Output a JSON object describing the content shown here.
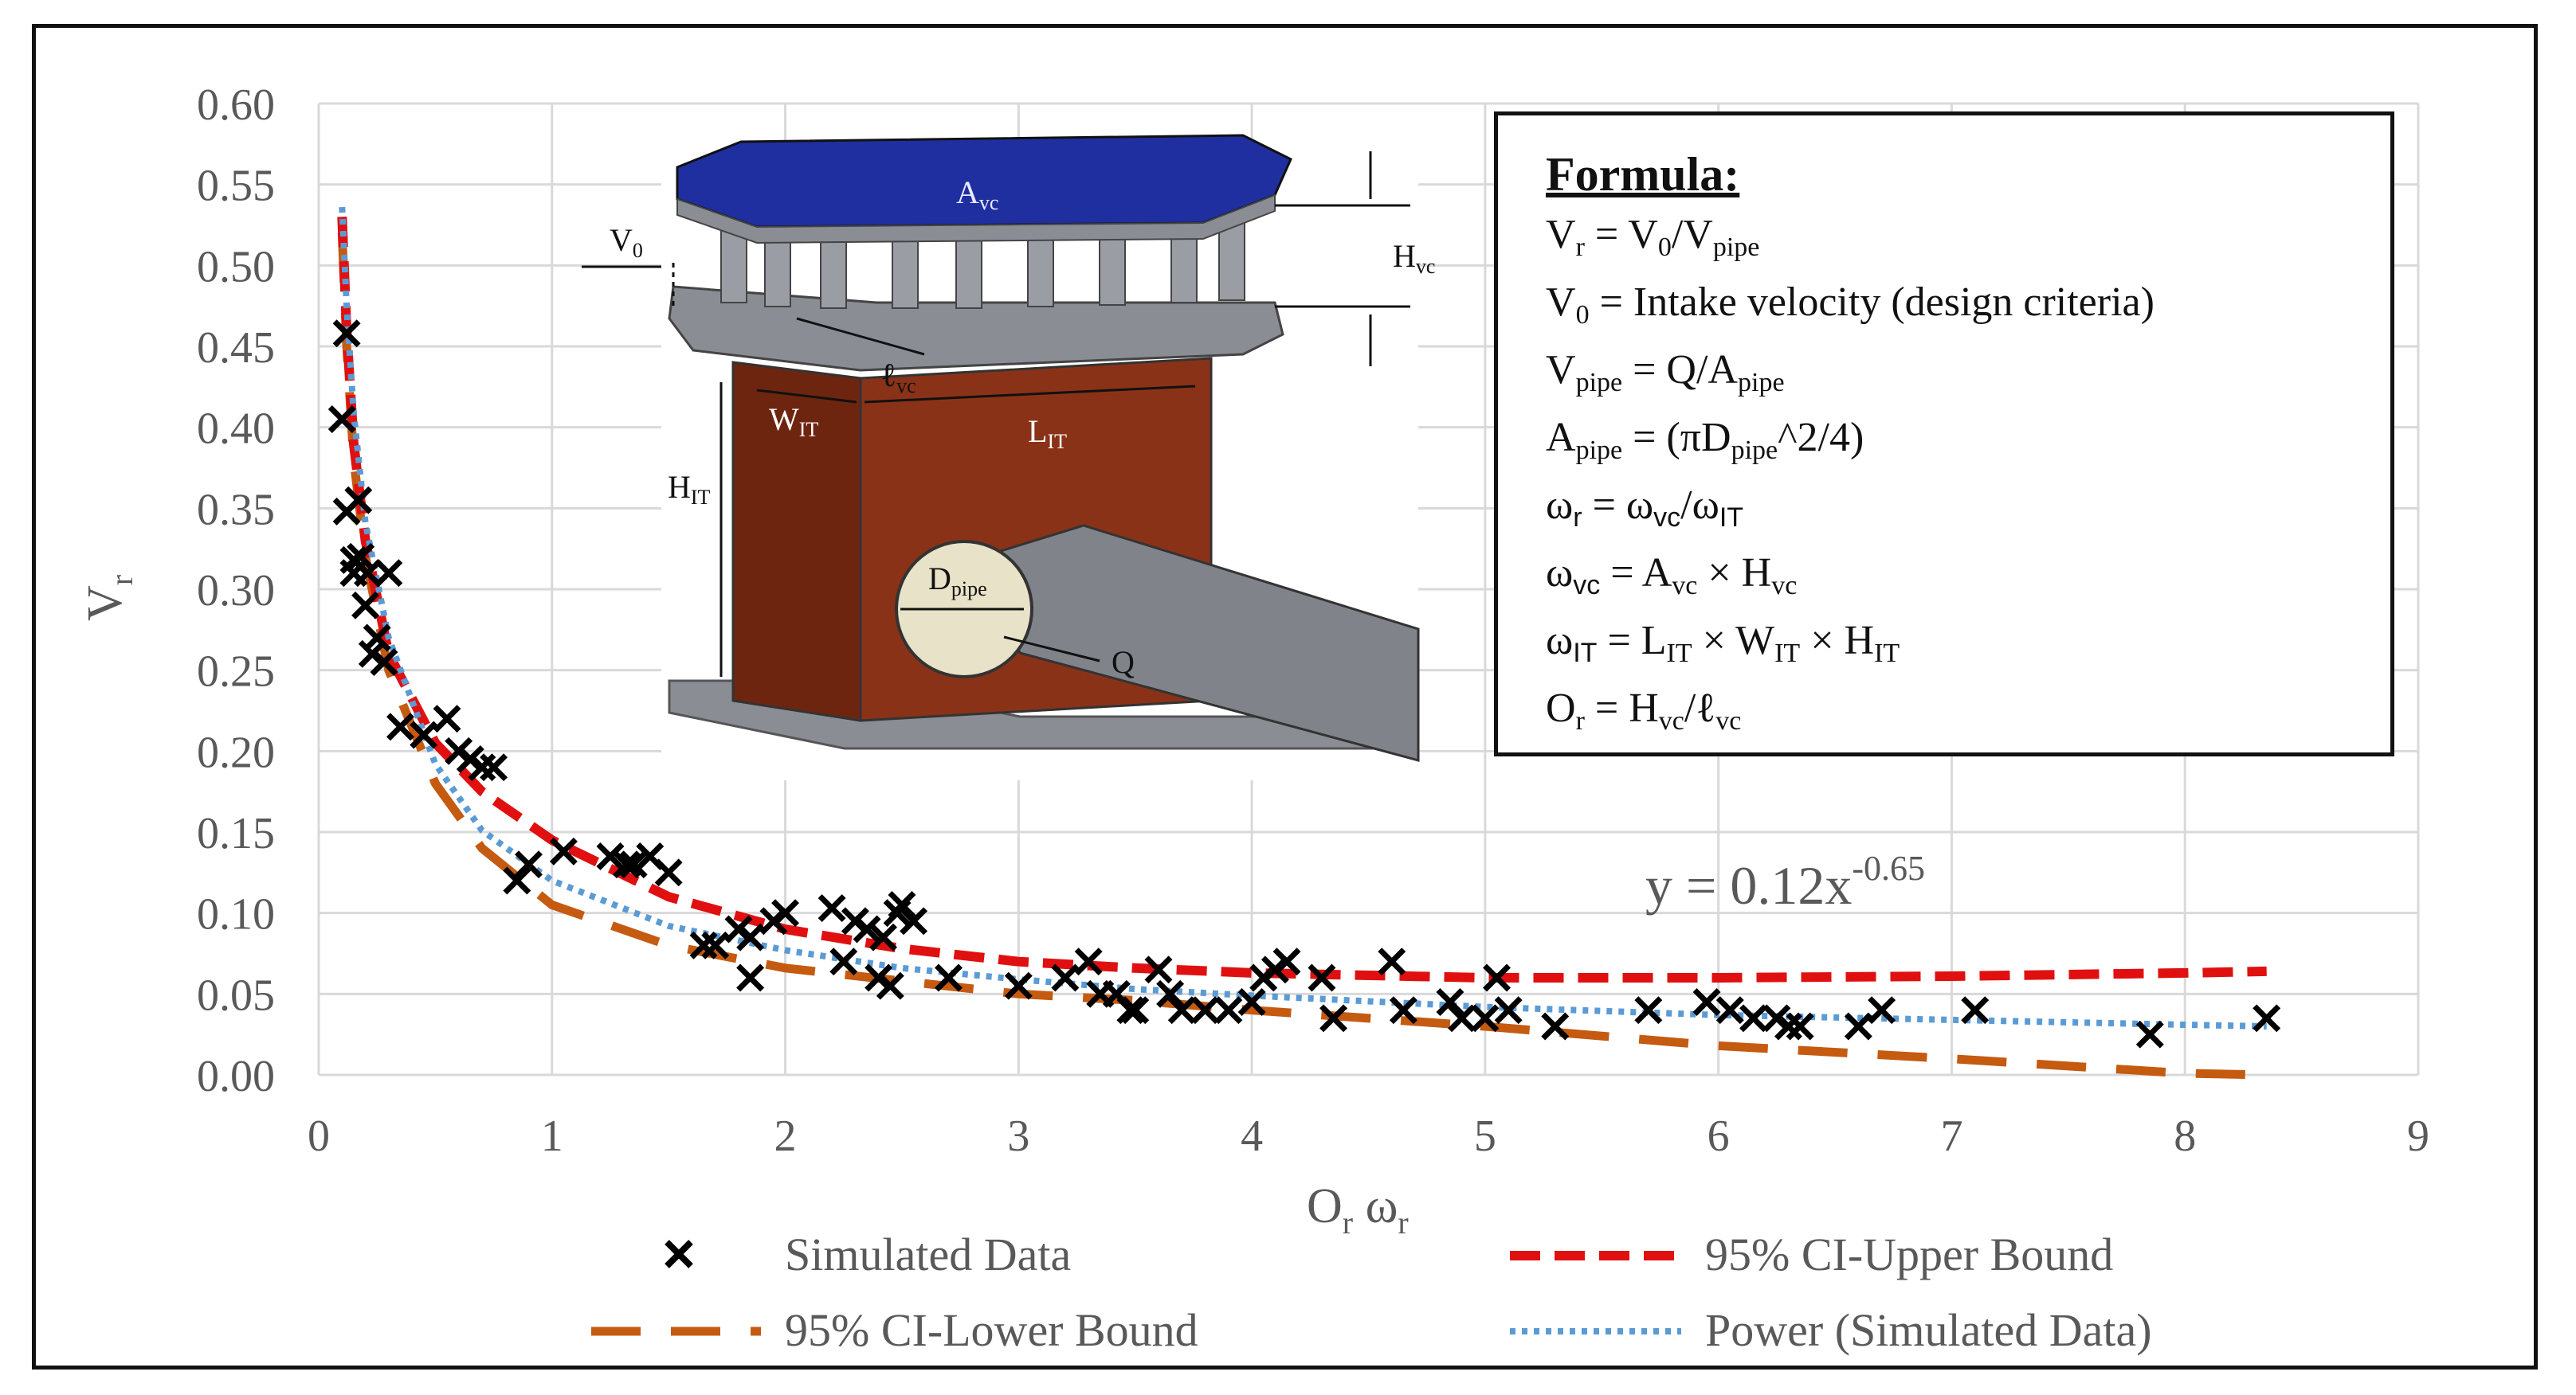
{
  "chart_data": {
    "type": "scatter",
    "xlabel_main": "O",
    "xlabel_sub1": "r",
    "xlabel_mid": " ω",
    "xlabel_sub2": "r",
    "ylabel_main": "V",
    "ylabel_sub": "r",
    "xlim": [
      0,
      9
    ],
    "ylim": [
      0,
      0.6
    ],
    "x_ticks": [
      "0",
      "1",
      "2",
      "3",
      "4",
      "5",
      "6",
      "7",
      "8",
      "9"
    ],
    "y_ticks": [
      "0.00",
      "0.05",
      "0.10",
      "0.15",
      "0.20",
      "0.25",
      "0.30",
      "0.35",
      "0.40",
      "0.45",
      "0.50",
      "0.55",
      "0.60"
    ],
    "grid": true,
    "equation_base": "y = 0.12x",
    "equation_exp": "-0.65",
    "legend_position": "bottom",
    "series": [
      {
        "name": "Simulated Data",
        "style": "x-marker",
        "color": "#000000",
        "x": [
          0.1,
          0.12,
          0.12,
          0.15,
          0.15,
          0.17,
          0.18,
          0.2,
          0.21,
          0.23,
          0.25,
          0.28,
          0.3,
          0.35,
          0.45,
          0.55,
          0.6,
          0.65,
          0.7,
          0.75,
          0.85,
          0.9,
          1.05,
          1.25,
          1.32,
          1.35,
          1.42,
          1.5,
          1.65,
          1.7,
          1.8,
          1.85,
          1.85,
          1.95,
          2.0,
          2.2,
          2.25,
          2.3,
          2.35,
          2.4,
          2.42,
          2.45,
          2.48,
          2.5,
          2.55,
          2.7,
          3.0,
          3.2,
          3.3,
          3.35,
          3.42,
          3.48,
          3.5,
          3.6,
          3.65,
          3.7,
          3.8,
          3.9,
          4.0,
          4.05,
          4.1,
          4.15,
          4.3,
          4.35,
          4.6,
          4.65,
          4.85,
          4.9,
          5.0,
          5.05,
          5.1,
          5.3,
          5.7,
          5.95,
          6.05,
          6.15,
          6.25,
          6.3,
          6.35,
          6.6,
          6.7,
          7.1,
          7.85,
          8.35
        ],
        "y": [
          0.405,
          0.458,
          0.348,
          0.318,
          0.31,
          0.355,
          0.32,
          0.29,
          0.31,
          0.26,
          0.27,
          0.255,
          0.31,
          0.215,
          0.21,
          0.22,
          0.2,
          0.195,
          0.19,
          0.19,
          0.12,
          0.13,
          0.138,
          0.135,
          0.13,
          0.13,
          0.135,
          0.125,
          0.08,
          0.08,
          0.09,
          0.06,
          0.085,
          0.095,
          0.1,
          0.103,
          0.07,
          0.095,
          0.09,
          0.06,
          0.085,
          0.055,
          0.1,
          0.105,
          0.095,
          0.06,
          0.055,
          0.06,
          0.07,
          0.05,
          0.05,
          0.04,
          0.04,
          0.065,
          0.05,
          0.04,
          0.04,
          0.04,
          0.045,
          0.06,
          0.065,
          0.07,
          0.06,
          0.035,
          0.07,
          0.04,
          0.045,
          0.035,
          0.035,
          0.06,
          0.04,
          0.03,
          0.04,
          0.045,
          0.04,
          0.035,
          0.035,
          0.03,
          0.03,
          0.03,
          0.04,
          0.04,
          0.025,
          0.035
        ]
      },
      {
        "name": "95% CI-Upper Bound",
        "style": "dashed",
        "color": "#e01010",
        "x": [
          0.1,
          0.12,
          0.15,
          0.2,
          0.3,
          0.5,
          0.7,
          1.0,
          1.5,
          2.0,
          2.5,
          3.0,
          3.5,
          4.0,
          5.0,
          6.0,
          7.0,
          8.0,
          8.35
        ],
        "y": [
          0.53,
          0.46,
          0.39,
          0.33,
          0.26,
          0.205,
          0.175,
          0.145,
          0.11,
          0.09,
          0.078,
          0.07,
          0.066,
          0.063,
          0.06,
          0.06,
          0.061,
          0.063,
          0.064
        ]
      },
      {
        "name": "95% CI-Lower Bound",
        "style": "long-dash",
        "color": "#c55a11",
        "x": [
          0.1,
          0.12,
          0.15,
          0.2,
          0.3,
          0.5,
          0.7,
          1.0,
          1.5,
          2.0,
          2.5,
          3.0,
          3.5,
          4.0,
          5.0,
          6.0,
          7.0,
          8.0,
          8.35
        ],
        "y": [
          0.52,
          0.45,
          0.38,
          0.32,
          0.25,
          0.18,
          0.14,
          0.105,
          0.08,
          0.066,
          0.058,
          0.05,
          0.046,
          0.04,
          0.03,
          0.018,
          0.01,
          0.001,
          0.0
        ]
      },
      {
        "name": "Power (Simulated Data)",
        "style": "dotted",
        "color": "#5b9bd5",
        "x": [
          0.1,
          0.12,
          0.15,
          0.2,
          0.3,
          0.5,
          0.7,
          1.0,
          1.5,
          2.0,
          2.5,
          3.0,
          3.5,
          4.0,
          5.0,
          6.0,
          7.0,
          8.0,
          8.35
        ],
        "y": [
          0.536,
          0.474,
          0.409,
          0.341,
          0.27,
          0.192,
          0.151,
          0.12,
          0.092,
          0.077,
          0.066,
          0.059,
          0.053,
          0.049,
          0.042,
          0.037,
          0.034,
          0.031,
          0.03
        ]
      }
    ]
  },
  "diagram": {
    "labels": {
      "avc": "A",
      "avc_sub": "vc",
      "v0": "V",
      "v0_sub": "0",
      "hvc": "H",
      "hvc_sub": "vc",
      "lvc": "ℓ",
      "lvc_sub": "vc",
      "wit": "W",
      "wit_sub": "IT",
      "lit": "L",
      "lit_sub": "IT",
      "hit": "H",
      "hit_sub": "IT",
      "dpipe": "D",
      "dpipe_sub": "pipe",
      "q": "Q"
    },
    "colors": {
      "cover": "#1f2fa0",
      "tank": "#7a2a14",
      "steel": "#8a8d94",
      "pipe": "#e8e2c8"
    }
  },
  "formula": {
    "title": "Formula:",
    "line1": {
      "a": "V",
      "a_sub": "r",
      "b": " = V",
      "b_sub": "0",
      "c": "/V",
      "c_sub": "pipe"
    },
    "line2": {
      "a": "V",
      "a_sub": "0",
      "b": " = Intake velocity (design criteria)"
    },
    "line3": {
      "a": "V",
      "a_sub": "pipe",
      "b": " = Q/A",
      "b_sub": "pipe"
    },
    "line4": {
      "a": "A",
      "a_sub": "pipe",
      "b": " = (πD",
      "b_sub": "pipe",
      "c": "^2/4)"
    },
    "line5": {
      "a": "ω",
      "a_sub": "r",
      "b": " = ω",
      "b_sub": "vc",
      "c": "/ω",
      "c_sub": "IT"
    },
    "line6": {
      "a": "ω",
      "a_sub": "vc",
      "b": " =  A",
      "b_sub": "vc",
      "c": " × H",
      "c_sub": "vc"
    },
    "line7": {
      "a": "ω",
      "a_sub": "IT",
      "b": " =  L",
      "b_sub": "IT",
      "c": " × W",
      "c_sub": "IT",
      "d": " × H",
      "d_sub": "IT"
    },
    "line8": {
      "a": "O",
      "a_sub": "r",
      "b": " = H",
      "b_sub": "vc",
      "c": "/ℓ",
      "c_sub": "vc"
    }
  }
}
